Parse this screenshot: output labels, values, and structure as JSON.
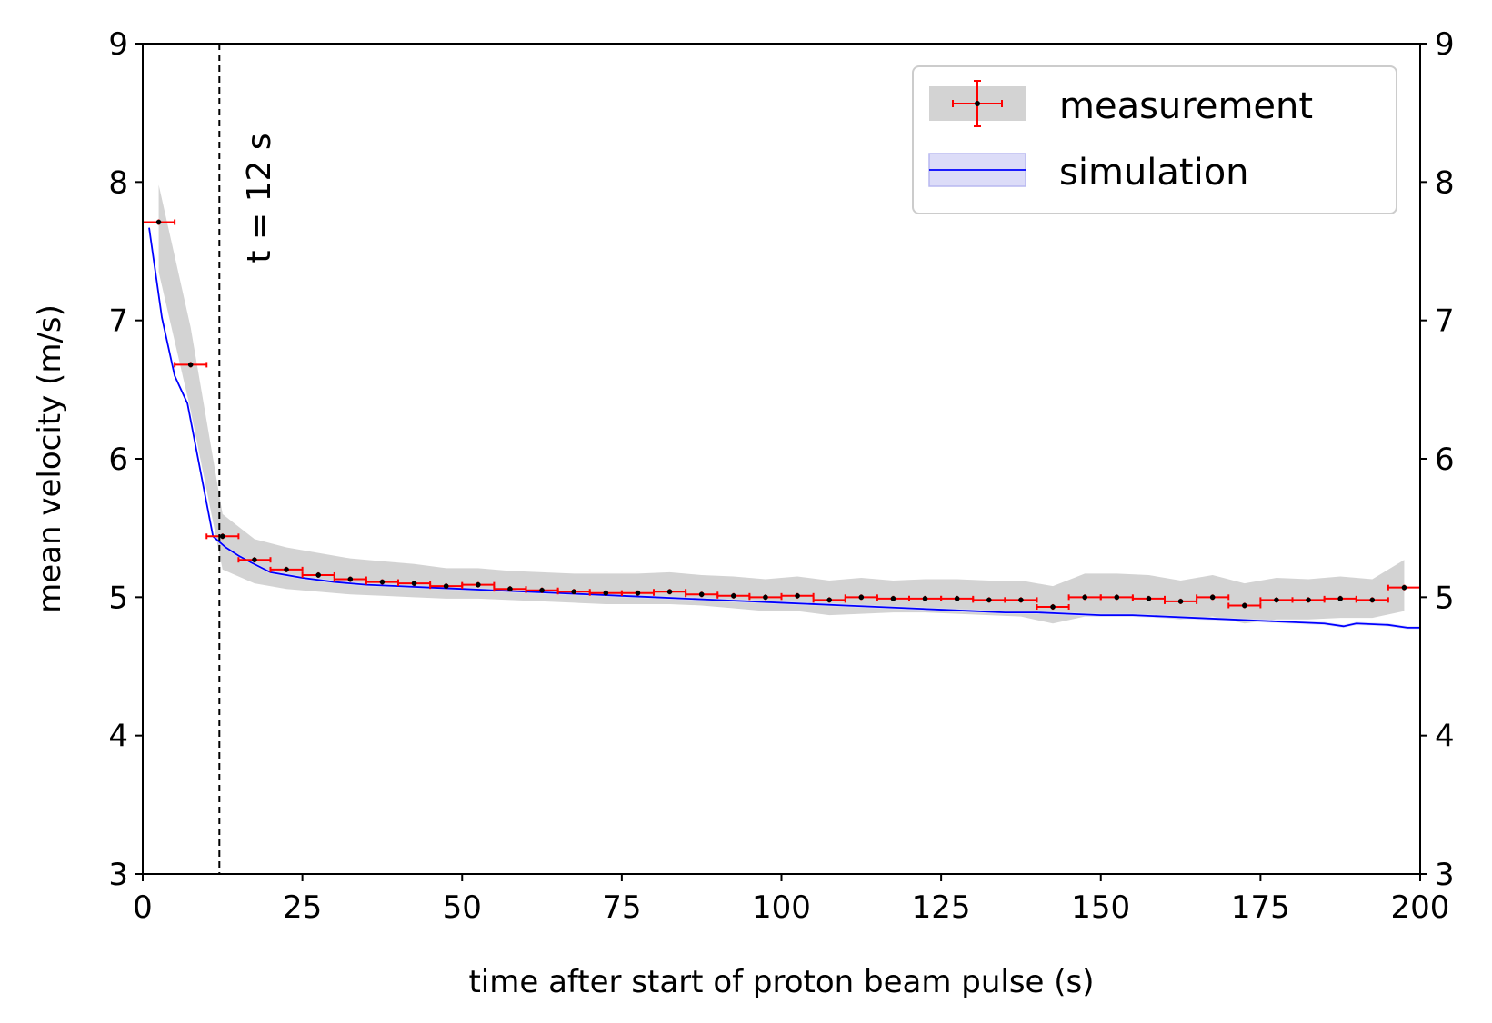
{
  "chart_data": {
    "type": "line",
    "title": "",
    "xlabel": "time after start of proton beam pulse (s)",
    "ylabel": "mean velocity (m/s)",
    "xlim": [
      0,
      200
    ],
    "ylim": [
      3,
      9
    ],
    "xticks": [
      0,
      25,
      50,
      75,
      100,
      125,
      150,
      175,
      200
    ],
    "yticks": [
      3,
      4,
      5,
      6,
      7,
      8,
      9
    ],
    "x_tick_labels": [
      "0",
      "25",
      "50",
      "75",
      "100",
      "125",
      "150",
      "175",
      "200"
    ],
    "y_tick_labels": [
      "3",
      "4",
      "5",
      "6",
      "7",
      "8",
      "9"
    ],
    "right_axis_mirror": true,
    "grid": false,
    "legend_position": "top-right",
    "legend": {
      "measurement": "measurement",
      "simulation": "simulation"
    },
    "vline": {
      "x": 12,
      "style": "dashed",
      "label": "t = 12 s"
    },
    "colors": {
      "simulation_line": "#0000ff",
      "simulation_band": "#dcdcf8",
      "measurement_band": "#d3d3d3",
      "error_bar": "#ff0000",
      "marker": "#000000"
    },
    "series": [
      {
        "name": "measurement",
        "type": "errorbar",
        "x": [
          2.5,
          7.5,
          12.5,
          17.5,
          22.5,
          27.5,
          32.5,
          37.5,
          42.5,
          47.5,
          52.5,
          57.5,
          62.5,
          67.5,
          72.5,
          77.5,
          82.5,
          87.5,
          92.5,
          97.5,
          102.5,
          107.5,
          112.5,
          117.5,
          122.5,
          127.5,
          132.5,
          137.5,
          142.5,
          147.5,
          152.5,
          157.5,
          162.5,
          167.5,
          172.5,
          177.5,
          182.5,
          187.5,
          192.5,
          197.5
        ],
        "y": [
          7.71,
          6.68,
          5.44,
          5.27,
          5.2,
          5.16,
          5.13,
          5.11,
          5.1,
          5.08,
          5.09,
          5.06,
          5.05,
          5.04,
          5.03,
          5.03,
          5.04,
          5.02,
          5.01,
          5.0,
          5.01,
          4.98,
          5.0,
          4.99,
          4.99,
          4.99,
          4.98,
          4.98,
          4.93,
          5.0,
          5.0,
          4.99,
          4.97,
          5.0,
          4.94,
          4.98,
          4.98,
          4.99,
          4.98,
          5.07
        ],
        "xerr": 2.5,
        "yerr": 0.02,
        "band_lower": [
          7.35,
          6.35,
          5.2,
          5.1,
          5.06,
          5.04,
          5.02,
          5.01,
          5.0,
          4.99,
          4.99,
          4.98,
          4.97,
          4.96,
          4.95,
          4.95,
          4.95,
          4.94,
          4.92,
          4.9,
          4.9,
          4.87,
          4.88,
          4.89,
          4.89,
          4.88,
          4.87,
          4.86,
          4.81,
          4.86,
          4.86,
          4.86,
          4.84,
          4.86,
          4.81,
          4.84,
          4.84,
          4.85,
          4.85,
          4.9
        ],
        "band_upper": [
          7.98,
          6.95,
          5.6,
          5.42,
          5.36,
          5.32,
          5.28,
          5.26,
          5.24,
          5.21,
          5.21,
          5.19,
          5.18,
          5.17,
          5.17,
          5.17,
          5.18,
          5.16,
          5.15,
          5.13,
          5.15,
          5.12,
          5.14,
          5.12,
          5.13,
          5.13,
          5.12,
          5.12,
          5.08,
          5.17,
          5.17,
          5.16,
          5.12,
          5.16,
          5.1,
          5.14,
          5.13,
          5.15,
          5.13,
          5.27
        ]
      },
      {
        "name": "simulation",
        "type": "line",
        "x": [
          1,
          3,
          5,
          7,
          9,
          11,
          13,
          15,
          17,
          20,
          25,
          30,
          35,
          40,
          45,
          50,
          55,
          60,
          65,
          70,
          75,
          80,
          85,
          90,
          95,
          100,
          105,
          110,
          115,
          120,
          125,
          130,
          135,
          140,
          145,
          150,
          155,
          160,
          165,
          170,
          175,
          180,
          185,
          188,
          190,
          195,
          198,
          200
        ],
        "y": [
          7.67,
          7.02,
          6.6,
          6.4,
          5.92,
          5.44,
          5.36,
          5.3,
          5.25,
          5.18,
          5.14,
          5.11,
          5.09,
          5.08,
          5.07,
          5.06,
          5.05,
          5.04,
          5.03,
          5.02,
          5.01,
          5.0,
          4.99,
          4.98,
          4.97,
          4.96,
          4.95,
          4.94,
          4.93,
          4.92,
          4.91,
          4.9,
          4.89,
          4.89,
          4.88,
          4.87,
          4.87,
          4.86,
          4.85,
          4.84,
          4.83,
          4.82,
          4.81,
          4.79,
          4.81,
          4.8,
          4.78,
          4.78
        ]
      }
    ]
  }
}
